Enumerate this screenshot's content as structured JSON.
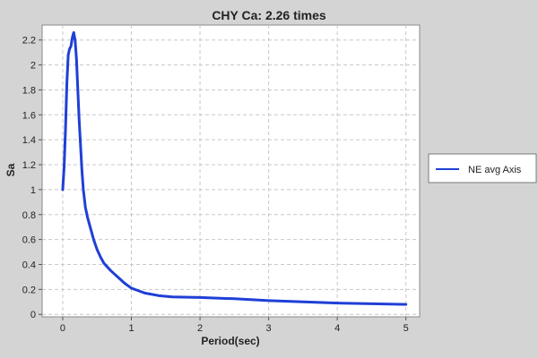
{
  "chart_data": {
    "type": "line",
    "title": "CHY Ca: 2.26 times",
    "xlabel": "Period(sec)",
    "ylabel": "Sa",
    "xlim": [
      -0.3,
      5.2
    ],
    "ylim": [
      -0.02,
      2.32
    ],
    "xticks": [
      0,
      1,
      2,
      3,
      4,
      5
    ],
    "yticks": [
      0,
      0.2,
      0.4,
      0.6,
      0.8,
      1,
      1.2,
      1.4,
      1.6,
      1.8,
      2,
      2.2
    ],
    "grid": true,
    "legend_position": "right",
    "series": [
      {
        "name": "NE avg Axis",
        "color": "#1f3fd6",
        "x": [
          0.0,
          0.02,
          0.04,
          0.06,
          0.08,
          0.1,
          0.12,
          0.14,
          0.16,
          0.18,
          0.2,
          0.22,
          0.24,
          0.26,
          0.28,
          0.3,
          0.33,
          0.36,
          0.4,
          0.45,
          0.5,
          0.55,
          0.6,
          0.7,
          0.8,
          0.9,
          1.0,
          1.1,
          1.2,
          1.4,
          1.6,
          2.0,
          2.5,
          3.0,
          3.5,
          4.0,
          4.5,
          5.0
        ],
        "y": [
          1.0,
          1.18,
          1.48,
          1.85,
          2.08,
          2.13,
          2.15,
          2.22,
          2.26,
          2.2,
          2.05,
          1.8,
          1.55,
          1.35,
          1.15,
          1.0,
          0.86,
          0.78,
          0.7,
          0.6,
          0.52,
          0.46,
          0.41,
          0.35,
          0.3,
          0.25,
          0.21,
          0.19,
          0.17,
          0.15,
          0.14,
          0.135,
          0.125,
          0.11,
          0.1,
          0.09,
          0.085,
          0.08
        ]
      }
    ]
  }
}
